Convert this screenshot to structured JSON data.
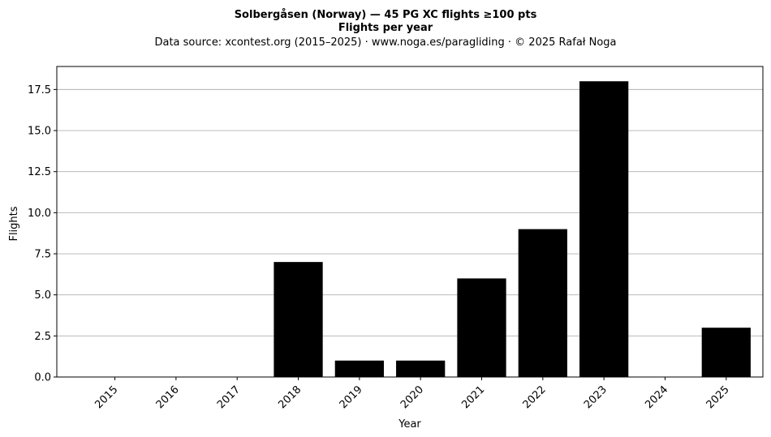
{
  "chart_data": {
    "type": "bar",
    "title": "Solbergåsen (Norway)  —  45 PG XC flights ≥100 pts",
    "subtitle": "Flights per year",
    "source_line": "Data source: xcontest.org (2015–2025)  ·  www.noga.es/paragliding  ·  © 2025 Rafał Noga",
    "xlabel": "Year",
    "ylabel": "Flights",
    "categories": [
      "2015",
      "2016",
      "2017",
      "2018",
      "2019",
      "2020",
      "2021",
      "2022",
      "2023",
      "2024",
      "2025"
    ],
    "values": [
      0,
      0,
      0,
      7,
      1,
      1,
      6,
      9,
      18,
      0,
      3
    ],
    "ylim": [
      0,
      18.9
    ],
    "yticks": [
      0,
      2.5,
      5,
      7.5,
      10,
      12.5,
      15,
      17.5
    ],
    "ytick_labels": [
      "0.0",
      "2.5",
      "5.0",
      "7.5",
      "10.0",
      "12.5",
      "15.0",
      "17.5"
    ],
    "grid": "y",
    "bar_color": "#000000",
    "grid_color": "#b0b0b0",
    "legend": "none"
  }
}
